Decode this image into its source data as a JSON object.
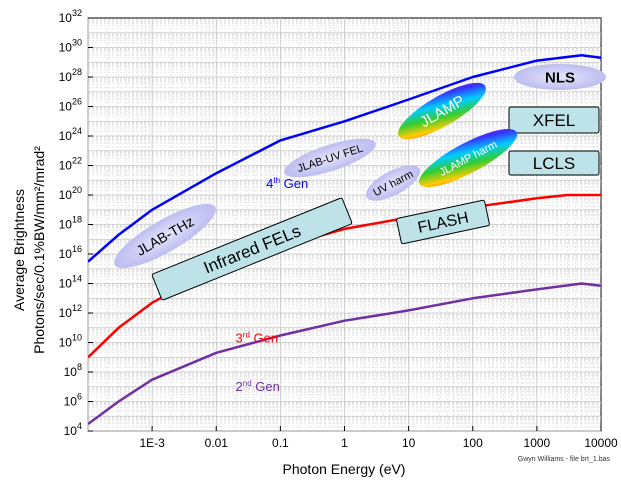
{
  "chart_data": {
    "type": "line",
    "xlabel": "Photon Energy (eV)",
    "ylabel_line1": "Average Brightness",
    "ylabel_line2": "Photons/sec/0.1%BW/mm²/mrad²",
    "x_scale": "log",
    "y_scale": "log",
    "xlim": [
      0.0001,
      10000
    ],
    "ylim": [
      10000,
      1e+32
    ],
    "grid": true,
    "x_ticks": [
      {
        "value": 0.001,
        "label": "1E-3"
      },
      {
        "value": 0.01,
        "label": "0.01"
      },
      {
        "value": 0.1,
        "label": "0.1"
      },
      {
        "value": 1,
        "label": "1"
      },
      {
        "value": 10,
        "label": "10"
      },
      {
        "value": 100,
        "label": "100"
      },
      {
        "value": 1000,
        "label": "1000"
      },
      {
        "value": 10000,
        "label": "10000"
      }
    ],
    "y_ticks": [
      4,
      6,
      8,
      10,
      12,
      14,
      16,
      18,
      20,
      22,
      24,
      26,
      28,
      30,
      32
    ],
    "series": [
      {
        "label": "4th Gen",
        "label_base": "4",
        "label_sup": "th",
        "label_rest": " Gen",
        "color": "#0000ff",
        "points": [
          [
            0.0001,
            3000000000000000.0
          ],
          [
            0.0003,
            2e+17
          ],
          [
            0.001,
            1e+19
          ],
          [
            0.01,
            3e+21
          ],
          [
            0.1,
            5e+23
          ],
          [
            1,
            1e+25
          ],
          [
            10,
            3e+26
          ],
          [
            100,
            1e+28
          ],
          [
            1000,
            1.3e+29
          ],
          [
            5000,
            3e+29
          ],
          [
            10000,
            2e+29
          ]
        ]
      },
      {
        "label": "3rd Gen",
        "label_base": "3",
        "label_sup": "rd",
        "label_rest": " Gen",
        "color": "#ff0000",
        "points": [
          [
            0.0001,
            1000000000.0
          ],
          [
            0.0003,
            100000000000.0
          ],
          [
            0.001,
            5000000000000.0
          ],
          [
            0.01,
            1000000000000000.0
          ],
          [
            0.1,
            3e+16
          ],
          [
            1,
            5e+17
          ],
          [
            10,
            3e+18
          ],
          [
            100,
            1.5e+19
          ],
          [
            1000,
            6e+19
          ],
          [
            3000,
            1e+20
          ],
          [
            10000,
            1e+20
          ]
        ]
      },
      {
        "label": "2nd Gen",
        "label_base": "2",
        "label_sup": "nd",
        "label_rest": " Gen",
        "color": "#7030a0",
        "points": [
          [
            0.0001,
            30000.0
          ],
          [
            0.0003,
            1000000.0
          ],
          [
            0.001,
            30000000.0
          ],
          [
            0.01,
            2000000000.0
          ],
          [
            0.1,
            30000000000.0
          ],
          [
            1,
            300000000000.0
          ],
          [
            10,
            1500000000000.0
          ],
          [
            100,
            10000000000000.0
          ],
          [
            1000,
            40000000000000.0
          ],
          [
            5000,
            100000000000000.0
          ],
          [
            10000,
            70000000000000.0
          ]
        ]
      }
    ],
    "annotations": [
      {
        "text": "NLS",
        "shape": "ellipse",
        "fill": "#c8c8f5"
      },
      {
        "text": "JLAMP",
        "shape": "rainbow-ellipse"
      },
      {
        "text": "XFEL",
        "shape": "box",
        "fill": "#bde3e8"
      },
      {
        "text": "JLAB-UV FEL",
        "shape": "ellipse",
        "fill": "#c8c8f5"
      },
      {
        "text": "LCLS",
        "shape": "box",
        "fill": "#bde3e8"
      },
      {
        "text": "UV harm",
        "shape": "ellipse",
        "fill": "#c8c8f5"
      },
      {
        "text": "JLAMP harm",
        "shape": "rainbow-ellipse"
      },
      {
        "text": "JLAB-THz",
        "shape": "ellipse",
        "fill": "#c8c8f5"
      },
      {
        "text": "Infrared FELs",
        "shape": "box",
        "fill": "#bde3e8"
      },
      {
        "text": "FLASH",
        "shape": "box",
        "fill": "#bde3e8"
      }
    ],
    "credit": "Gwyn Williams - file brt_1.bas"
  }
}
